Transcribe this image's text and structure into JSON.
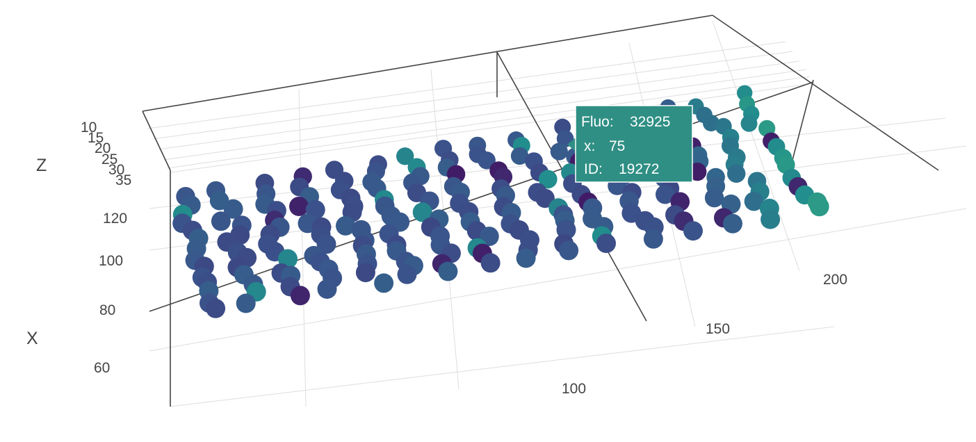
{
  "chart_data": {
    "type": "scatter",
    "title": "",
    "axes": {
      "x": {
        "title": "X",
        "ticks": [
          "60",
          "80",
          "100",
          "120"
        ]
      },
      "y": {
        "title": "",
        "ticks": [
          "100",
          "150",
          "200"
        ]
      },
      "z": {
        "title": "Z",
        "ticks": [
          "10",
          "15",
          "20",
          "25",
          "30",
          "35"
        ]
      }
    },
    "colorscale": [
      "#440154",
      "#3b528b",
      "#21908d",
      "#5dc963",
      "#fde725"
    ],
    "hover": {
      "lines": [
        {
          "label": "Fluo:",
          "value": "32925"
        },
        {
          "label": "x:",
          "value": "75"
        },
        {
          "label": "ID:",
          "value": "19272"
        }
      ],
      "color": "#2f8f84"
    },
    "field": {
      "x_range": [
        55,
        125
      ],
      "y_range": [
        60,
        215
      ],
      "fluo_range": [
        25000,
        60000
      ],
      "rows_x": [
        60,
        65,
        70,
        75,
        80,
        85,
        90,
        95,
        100,
        105,
        110,
        115,
        120,
        125
      ],
      "cols_y": [
        62,
        72,
        82,
        92,
        102,
        112,
        122,
        132,
        142,
        152,
        162,
        172,
        182,
        192,
        202,
        212
      ]
    }
  }
}
